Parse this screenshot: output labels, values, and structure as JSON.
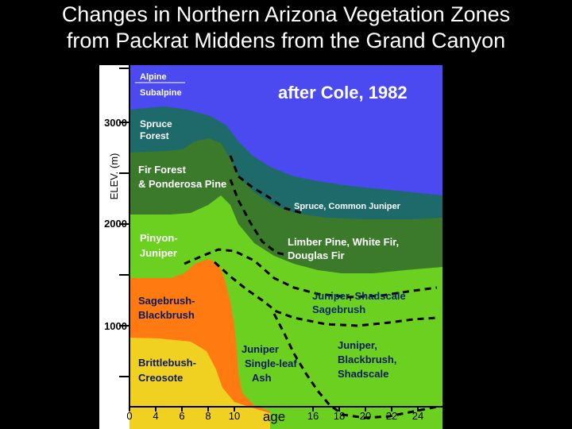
{
  "slide": {
    "title_line1": "Changes in Northern Arizona Vegetation Zones",
    "title_line2": "from Packrat Middens from the Grand Canyon"
  },
  "diagram": {
    "credit": "after Cole, 1982",
    "y_axis_label": "ELEV. (m)",
    "y_ticks": [
      "3000",
      "2000",
      "1000"
    ],
    "x_ticks": [
      "0",
      "4",
      "6",
      "8",
      "10",
      "16",
      "18",
      "20",
      "22",
      "24"
    ],
    "x_axis_label": "age",
    "zones": {
      "alpine": "Alpine",
      "subalpine": "Subalpine",
      "spruce_forest": [
        "Spruce",
        "Forest"
      ],
      "fir_forest": [
        "Fir Forest",
        "& Ponderosa Pine"
      ],
      "spruce_common_juniper": "Spruce, Common Juniper",
      "pinyon_juniper": [
        "Pinyon-",
        "Juniper"
      ],
      "limber_pine": [
        "Limber Pine, White Fir,",
        "Douglas Fir"
      ],
      "juniper_shadscale_sagebrush": [
        "Juniper, Shadscale",
        "Sagebrush"
      ],
      "sagebrush_blackbrush": [
        "Sagebrush-",
        "Blackbrush"
      ],
      "brittlebush_creosote": [
        "Brittlebush-",
        "Creosote"
      ],
      "juniper_single_leaf_ash": [
        "Juniper",
        "Single-leaf",
        "Ash"
      ],
      "juniper_blackbrush_shadscale": [
        "Juniper,",
        "Blackbrush,",
        "Shadscale"
      ]
    },
    "colors": {
      "background": "#000000",
      "sky": "#4a4af0",
      "spruce_forest": "#1e6a6a",
      "fir_forest": "#3a7a2a",
      "pinyon": "#6cd020",
      "sagebrush": "#ff7a10",
      "brittlebush": "#f0d020",
      "axis_panel": "#ffffff"
    }
  }
}
